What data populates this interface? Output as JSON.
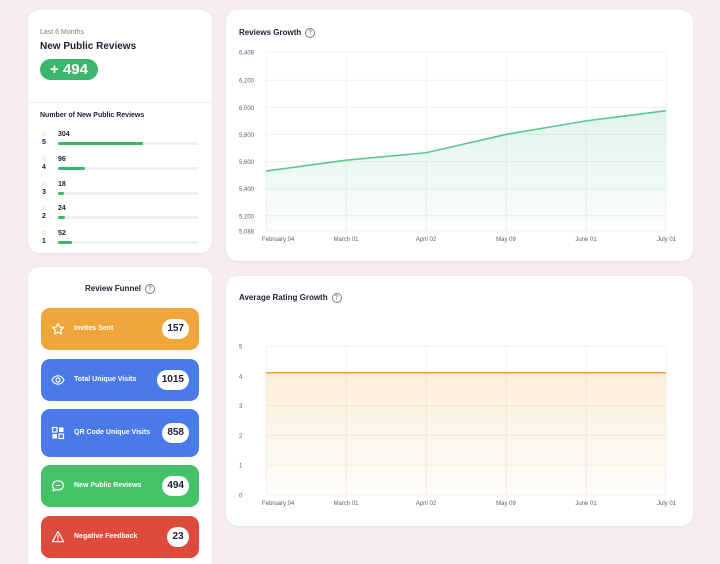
{
  "summary": {
    "period": "Last 6 Months",
    "title": "New Public Reviews",
    "total": "+ 494",
    "breakdown_title": "Number of New Public Reviews",
    "rows": [
      {
        "stars": "5",
        "count": "304",
        "fraction": 0.61
      },
      {
        "stars": "4",
        "count": "96",
        "fraction": 0.19
      },
      {
        "stars": "3",
        "count": "18",
        "fraction": 0.04
      },
      {
        "stars": "2",
        "count": "24",
        "fraction": 0.05
      },
      {
        "stars": "1",
        "count": "52",
        "fraction": 0.1
      }
    ]
  },
  "funnel": {
    "title": "Review Funnel",
    "items": [
      {
        "label": "Invites Sent",
        "count": "157",
        "color": "#f0a63a",
        "icon": "star-icon"
      },
      {
        "label": "Total Unique Visits",
        "count": "1015",
        "color": "#4a79e8",
        "icon": "eye-icon"
      },
      {
        "label": "QR Code Unique Visits",
        "count": "858",
        "color": "#4a79e8",
        "icon": "qr-code-icon"
      },
      {
        "label": "New Public Reviews",
        "count": "494",
        "color": "#45c267",
        "icon": "chat-icon"
      },
      {
        "label": "Negative Feedback",
        "count": "23",
        "color": "#de4b3c",
        "icon": "warning-icon"
      }
    ]
  },
  "chart_data": [
    {
      "type": "area",
      "title": "Reviews Growth",
      "x": [
        "February 04",
        "March 01",
        "April 02",
        "May 09",
        "June 01",
        "July 01"
      ],
      "y_ticks": [
        "5,088",
        "5,200",
        "5,400",
        "5,600",
        "5,800",
        "6,000",
        "6,200",
        "6,408"
      ],
      "ylim": [
        5088,
        6408
      ],
      "series": [
        {
          "values": [
            5530,
            5610,
            5665,
            5800,
            5900,
            5975
          ],
          "color": "#5bc790"
        }
      ],
      "grid": true
    },
    {
      "type": "area",
      "title": "Average Rating Growth",
      "x": [
        "February 04",
        "March 01",
        "April 02",
        "May 09",
        "June 01",
        "July 01"
      ],
      "y_ticks": [
        "0",
        "1",
        "2",
        "3",
        "4",
        "5"
      ],
      "ylim": [
        0,
        5
      ],
      "series": [
        {
          "values": [
            4.1,
            4.1,
            4.1,
            4.1,
            4.1,
            4.1
          ],
          "color": "#f0a63a"
        }
      ],
      "grid": true
    }
  ]
}
